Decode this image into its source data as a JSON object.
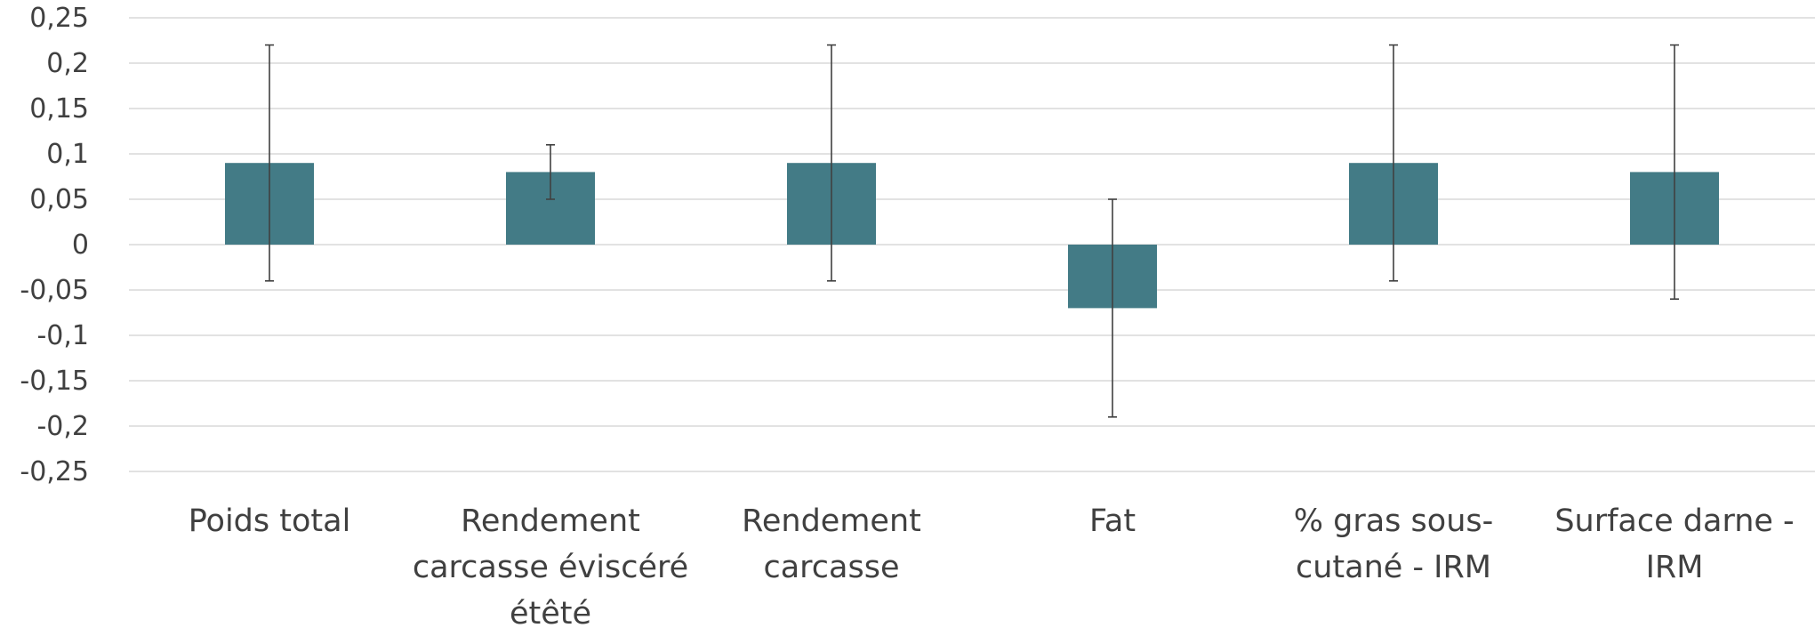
{
  "chart_data": {
    "type": "bar",
    "title": "",
    "xlabel": "",
    "ylabel": "",
    "ylim": [
      -0.25,
      0.25
    ],
    "ytick_step": 0.05,
    "yticks": [
      "0,25",
      "0,2",
      "0,15",
      "0,1",
      "0,05",
      "0",
      "-0,05",
      "-0,1",
      "-0,15",
      "-0,2",
      "-0,25"
    ],
    "grid": true,
    "legend": "none",
    "color": "#437b86",
    "categories": [
      [
        "Poids total"
      ],
      [
        "Rendement",
        "carcasse éviscéré",
        "étêté"
      ],
      [
        "Rendement",
        "carcasse"
      ],
      [
        "Fat"
      ],
      [
        "% gras sous-",
        "cutané - IRM"
      ],
      [
        "Surface darne -",
        "IRM"
      ]
    ],
    "values": [
      0.09,
      0.08,
      0.09,
      -0.07,
      0.09,
      0.08
    ],
    "error_low": [
      -0.04,
      0.05,
      -0.04,
      -0.19,
      -0.04,
      -0.06
    ],
    "error_high": [
      0.22,
      0.11,
      0.22,
      0.05,
      0.22,
      0.22
    ]
  }
}
